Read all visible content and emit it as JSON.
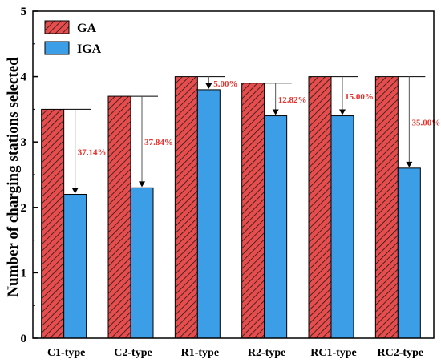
{
  "chart_data": {
    "type": "bar",
    "categories": [
      "C1-type",
      "C2-type",
      "R1-type",
      "R2-type",
      "RC1-type",
      "RC2-type"
    ],
    "series": [
      {
        "name": "GA",
        "values": [
          3.5,
          3.7,
          4.0,
          3.9,
          4.0,
          4.0
        ],
        "color": "#e84d4d",
        "pattern": "hatched"
      },
      {
        "name": "IGA",
        "values": [
          2.2,
          2.3,
          3.8,
          3.4,
          3.4,
          2.6
        ],
        "color": "#3d9ee8"
      }
    ],
    "reduction_labels": [
      "37.14%",
      "37.84%",
      "5.00%",
      "12.82%",
      "15.00%",
      "35.00%"
    ],
    "reduction_label_color": "#e8302a",
    "ylabel": "Number of charging stations selected",
    "xlabel": "",
    "ylim": [
      0,
      5
    ],
    "yticks": [
      0,
      1,
      2,
      3,
      4,
      5
    ],
    "legend_placement": "top-left",
    "grid": false
  }
}
